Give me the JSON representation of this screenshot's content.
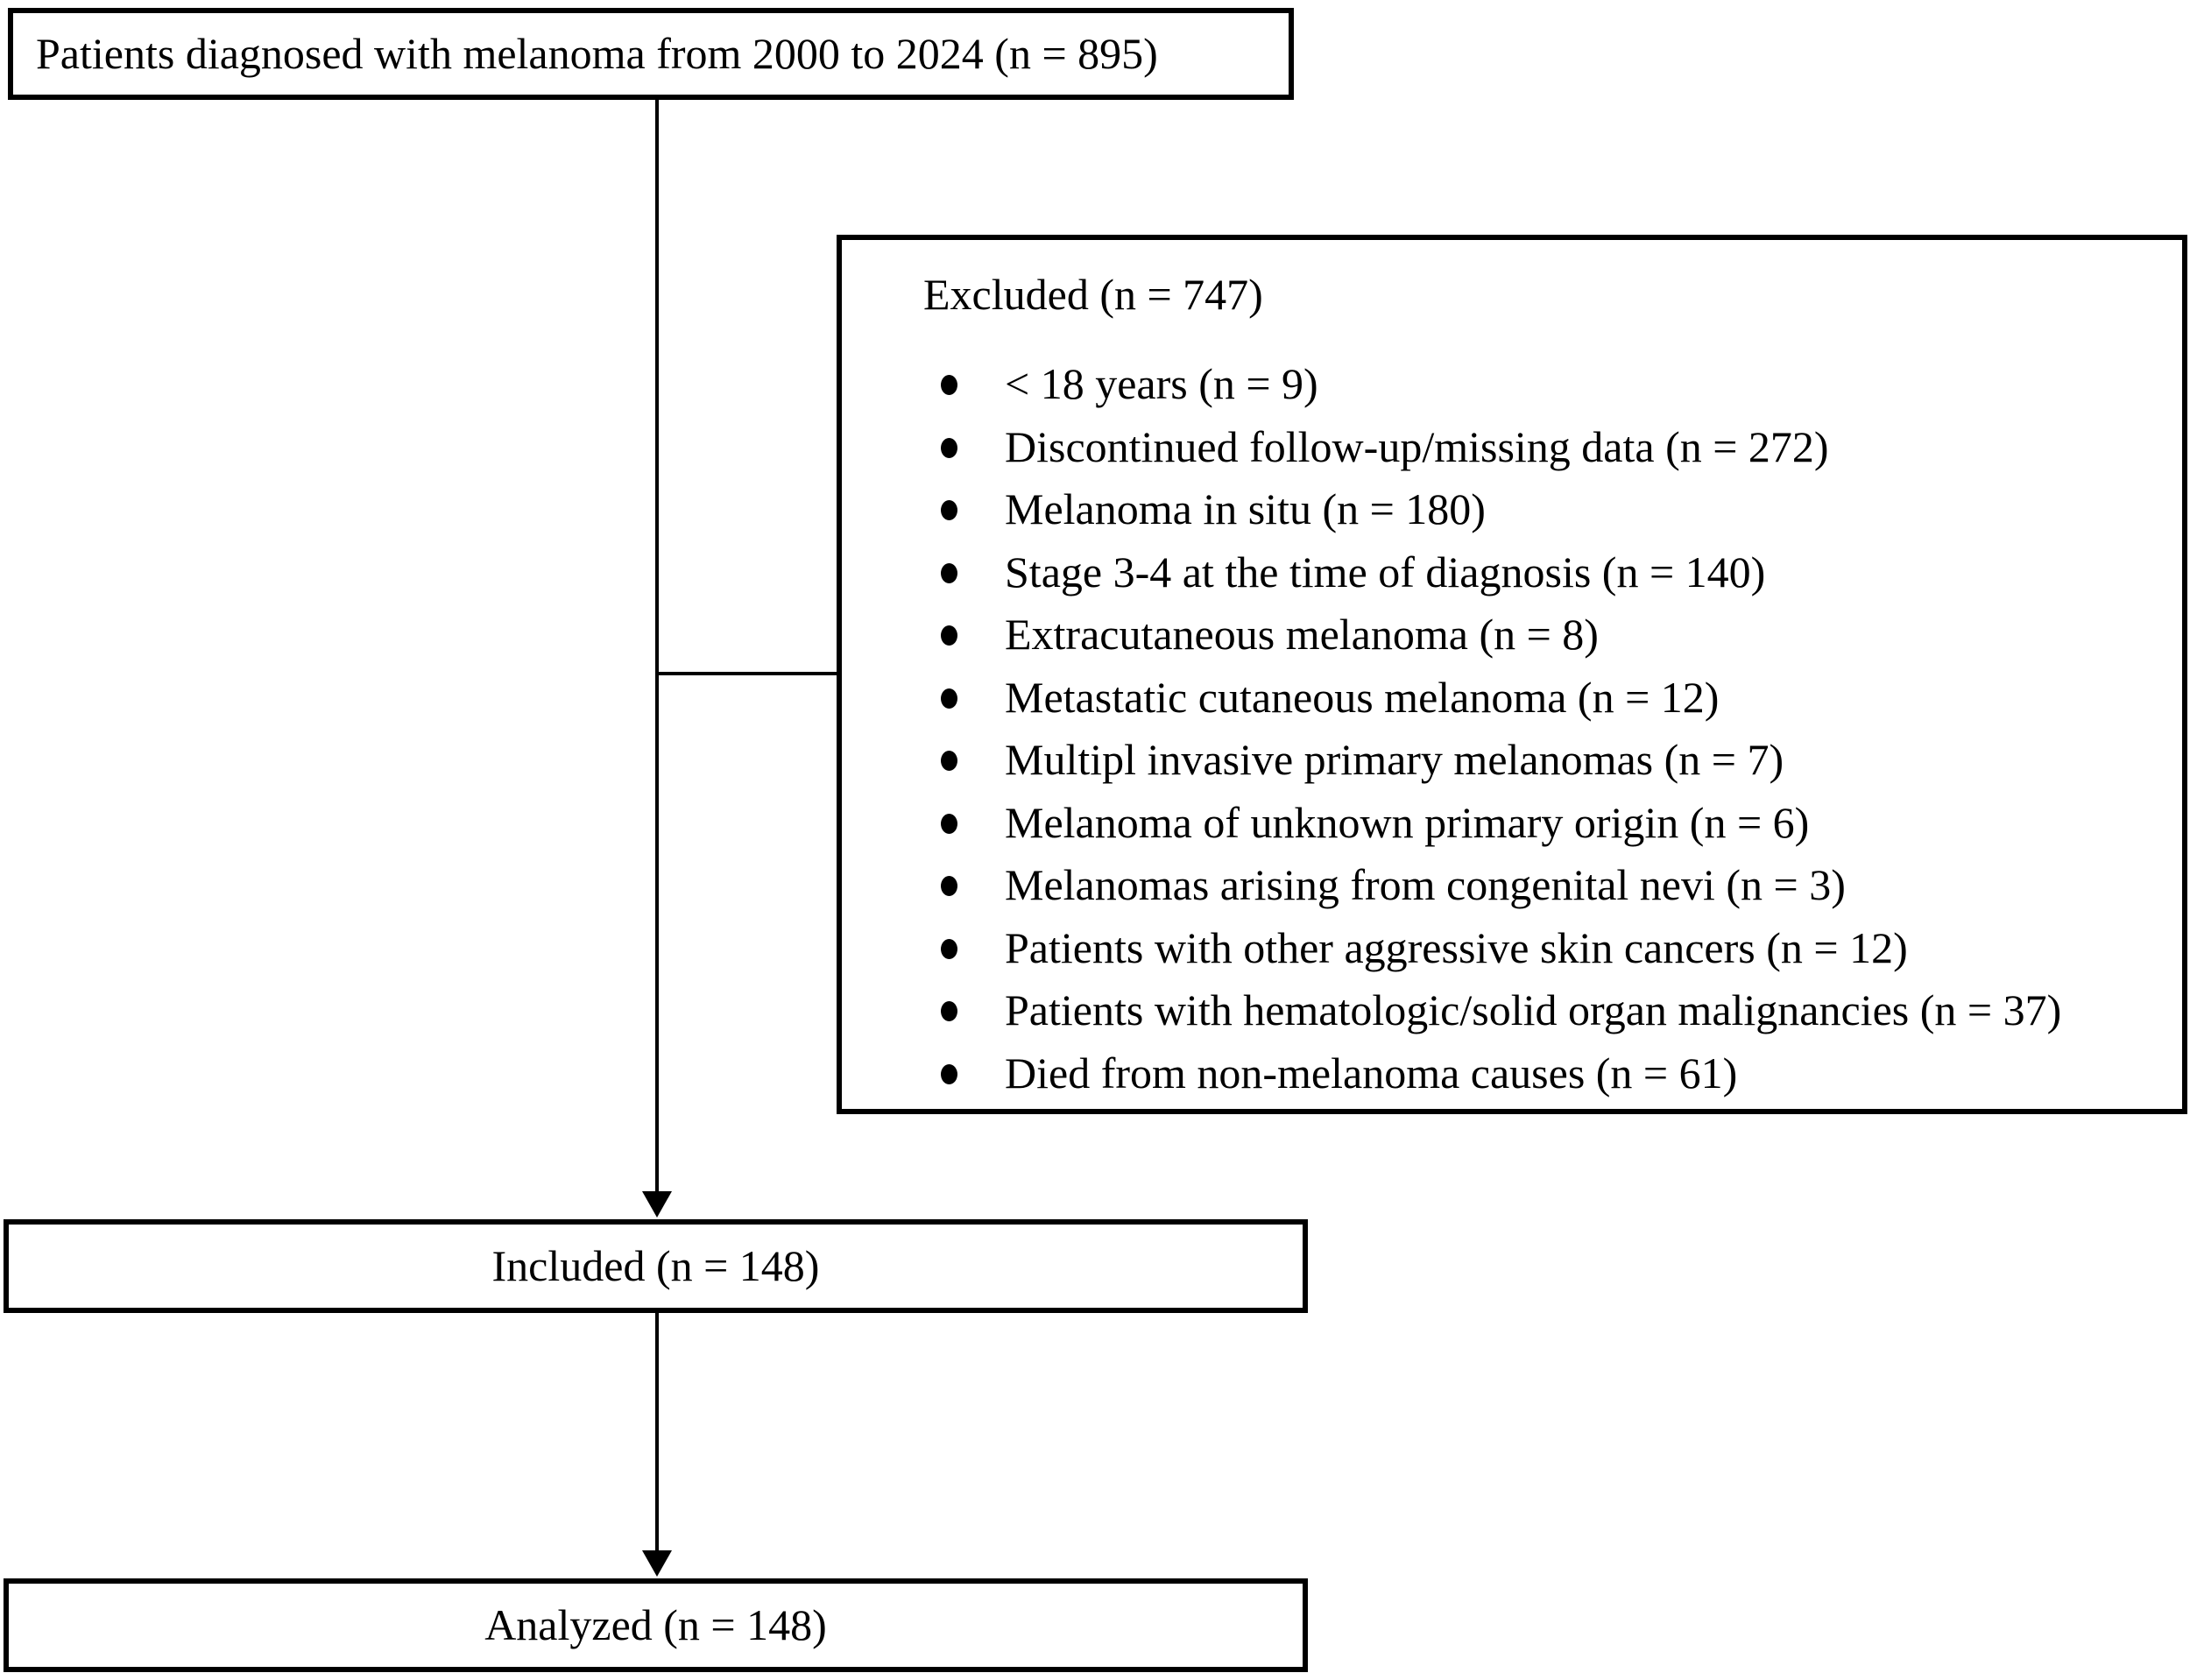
{
  "flowchart": {
    "top_box": {
      "label": "Patients diagnosed with melanoma from 2000 to 2024 (n = 895)"
    },
    "excluded_box": {
      "title": "Excluded (n = 747)",
      "items": [
        "< 18 years (n = 9)",
        "Discontinued follow-up/missing data (n = 272)",
        "Melanoma in situ (n = 180)",
        "Stage 3-4 at the time of diagnosis (n = 140)",
        "Extracutaneous melanoma (n = 8)",
        "Metastatic cutaneous melanoma (n = 12)",
        "Multipl invasive primary melanomas (n = 7)",
        "Melanoma of unknown primary origin (n = 6)",
        "Melanomas arising from congenital nevi (n = 3)",
        "Patients with other aggressive skin cancers (n = 12)",
        "Patients with hematologic/solid organ malignancies (n = 37)",
        "Died from non-melanoma causes (n = 61)"
      ]
    },
    "included_box": {
      "label": "Included (n = 148)"
    },
    "analyzed_box": {
      "label": "Analyzed (n = 148)"
    },
    "colors": {
      "line": "#000000",
      "text": "#000000",
      "background": "#ffffff"
    }
  }
}
